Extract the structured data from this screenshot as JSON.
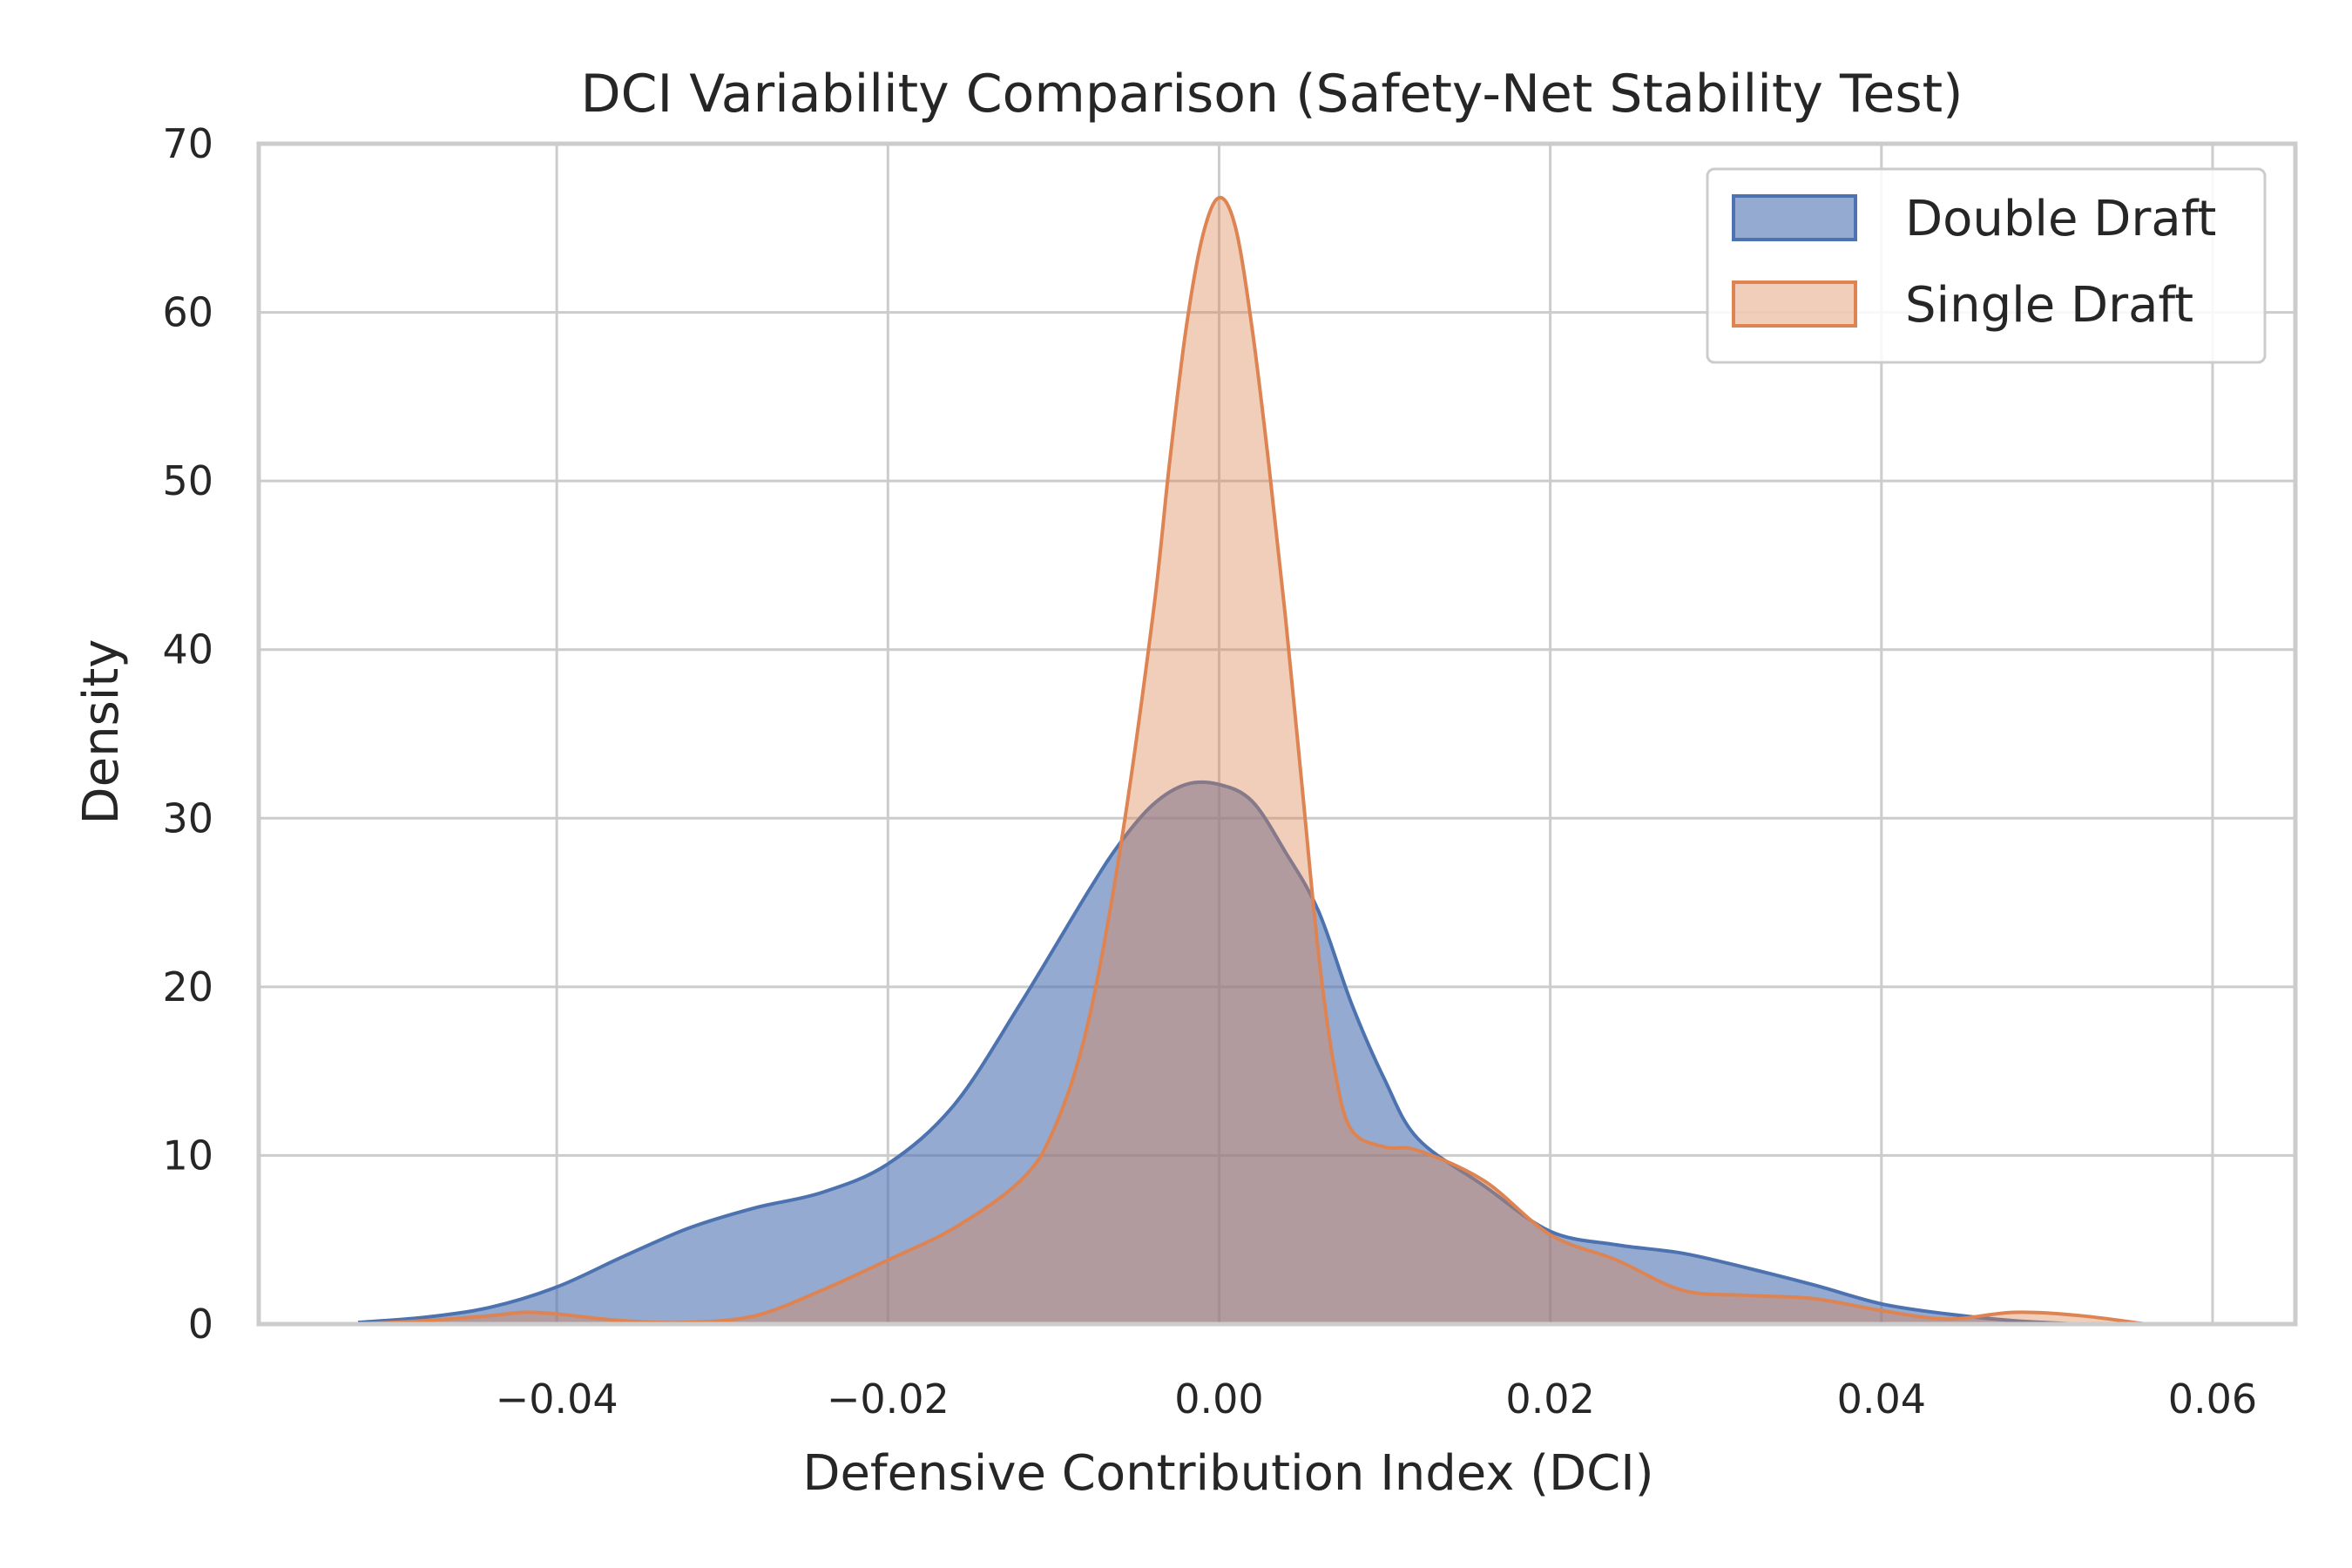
{
  "chart_data": {
    "type": "area",
    "title": "DCI Variability Comparison (Safety-Net Stability Test)",
    "xlabel": "Defensive Contribution Index (DCI)",
    "ylabel": "Density",
    "xlim": [
      -0.058,
      0.065
    ],
    "ylim": [
      0,
      70
    ],
    "xticks": [
      -0.04,
      -0.02,
      0.0,
      0.02,
      0.04,
      0.06
    ],
    "xtick_labels": [
      "−0.04",
      "−0.02",
      "0.00",
      "0.02",
      "0.04",
      "0.06"
    ],
    "yticks": [
      0,
      10,
      20,
      30,
      40,
      50,
      60,
      70
    ],
    "ytick_labels": [
      "0",
      "10",
      "20",
      "30",
      "40",
      "50",
      "60",
      "70"
    ],
    "grid": true,
    "legend_position": "top-right",
    "series": [
      {
        "name": "Double Draft",
        "color": "#4c72b0",
        "fill_opacity": 0.6,
        "x": [
          -0.052,
          -0.048,
          -0.044,
          -0.04,
          -0.036,
          -0.032,
          -0.028,
          -0.024,
          -0.02,
          -0.016,
          -0.012,
          -0.008,
          -0.006,
          -0.004,
          -0.002,
          0.0,
          0.002,
          0.004,
          0.006,
          0.008,
          0.01,
          0.012,
          0.016,
          0.02,
          0.024,
          0.028,
          0.032,
          0.036,
          0.04,
          0.044,
          0.048,
          0.052
        ],
        "y": [
          0.1,
          0.4,
          1.0,
          2.2,
          4.0,
          5.7,
          6.9,
          7.8,
          9.5,
          13.0,
          19.0,
          25.5,
          28.5,
          30.8,
          32.0,
          32.0,
          31.0,
          28.0,
          24.5,
          19.0,
          14.5,
          11.0,
          8.2,
          5.5,
          4.7,
          4.2,
          3.3,
          2.3,
          1.2,
          0.6,
          0.2,
          0.0
        ]
      },
      {
        "name": "Single Draft",
        "color": "#dd8452",
        "fill_opacity": 0.4,
        "x": [
          -0.052,
          -0.048,
          -0.044,
          -0.042,
          -0.04,
          -0.036,
          -0.032,
          -0.028,
          -0.024,
          -0.02,
          -0.016,
          -0.012,
          -0.01,
          -0.008,
          -0.006,
          -0.004,
          -0.003,
          -0.002,
          -0.001,
          0.0,
          0.001,
          0.002,
          0.003,
          0.004,
          0.005,
          0.006,
          0.007,
          0.008,
          0.01,
          0.012,
          0.016,
          0.02,
          0.024,
          0.028,
          0.032,
          0.036,
          0.04,
          0.044,
          0.048,
          0.052,
          0.056
        ],
        "y": [
          0.0,
          0.2,
          0.5,
          0.7,
          0.6,
          0.2,
          0.1,
          0.5,
          2.0,
          3.8,
          5.7,
          8.5,
          11.5,
          17.5,
          28.0,
          42.0,
          51.0,
          59.0,
          64.5,
          66.8,
          65.0,
          59.0,
          51.0,
          42.0,
          32.0,
          22.0,
          15.0,
          11.5,
          10.5,
          10.3,
          8.5,
          5.3,
          3.8,
          2.0,
          1.7,
          1.5,
          0.8,
          0.3,
          0.7,
          0.5,
          0.0
        ]
      }
    ]
  }
}
